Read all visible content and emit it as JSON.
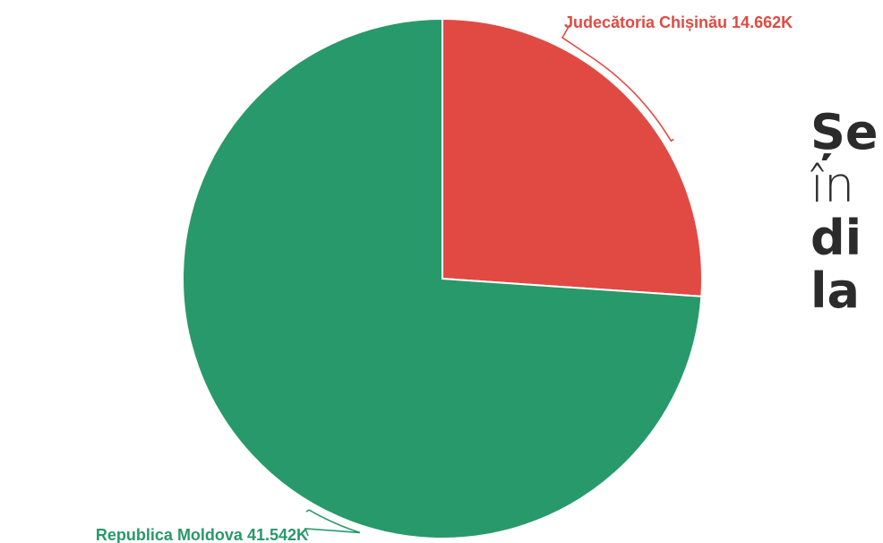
{
  "chart_data": {
    "type": "pie",
    "title": "",
    "slices": [
      {
        "name": "Judecătoria Chișinău",
        "value": 14.662,
        "label": "Judecătoria Chișinău 14.662K",
        "color": "#e04a43"
      },
      {
        "name": "Republica Moldova",
        "value": 41.542,
        "label": "Republica Moldova 41.542K",
        "color": "#28996a"
      }
    ],
    "start_angle_deg": 0,
    "direction": "clockwise"
  },
  "heading": {
    "line1": "Șe",
    "line2": "în",
    "line3": "di",
    "line4": "la"
  }
}
